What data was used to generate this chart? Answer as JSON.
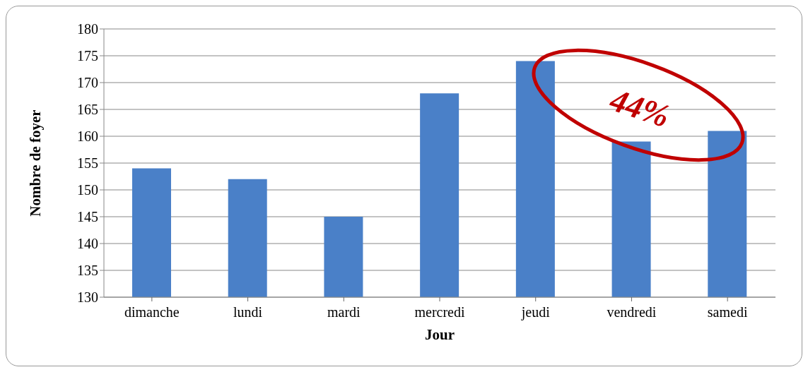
{
  "chart_data": {
    "type": "bar",
    "xlabel": "Jour",
    "ylabel": "Nombre de foyer",
    "categories": [
      "dimanche",
      "lundi",
      "mardi",
      "mercredi",
      "jeudi",
      "vendredi",
      "samedi"
    ],
    "values": [
      154,
      152,
      145,
      168,
      174,
      159,
      161
    ],
    "color": "#4a80c8",
    "ylim": [
      130,
      180
    ],
    "yticks": [
      130,
      135,
      140,
      145,
      150,
      155,
      160,
      165,
      170,
      175,
      180
    ],
    "grid": "y",
    "annotations": [
      "44%"
    ]
  }
}
